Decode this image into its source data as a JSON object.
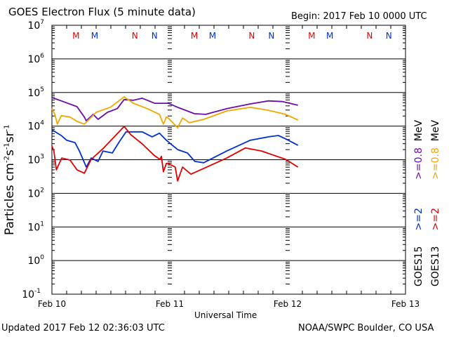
{
  "header": {
    "title": "GOES Electron Flux (5 minute data)",
    "begin": "Begin: 2017 Feb 10 0000 UTC"
  },
  "footer": {
    "updated": "Updated 2017 Feb 12 02:36:03 UTC",
    "credit": "NOAA/SWPC Boulder, CO USA"
  },
  "chart_data": {
    "type": "line",
    "title": "GOES Electron Flux (5 minute data)",
    "xlabel": "Universal Time",
    "ylabel": "Particles cm-2s-1sr-1",
    "yscale": "log",
    "ylim_log10": [
      -1,
      7
    ],
    "xlim_hours": [
      0,
      72
    ],
    "x_ticks": [
      {
        "label": "Feb 10",
        "h": 0
      },
      {
        "label": "Feb 11",
        "h": 24
      },
      {
        "label": "Feb 12",
        "h": 48
      },
      {
        "label": "Feb 13",
        "h": 72
      }
    ],
    "y_ticks": [
      {
        "base": "10",
        "exp": "7"
      },
      {
        "base": "10",
        "exp": "6"
      },
      {
        "base": "10",
        "exp": "5"
      },
      {
        "base": "10",
        "exp": "4"
      },
      {
        "base": "10",
        "exp": "3"
      },
      {
        "base": "10",
        "exp": "2"
      },
      {
        "base": "10",
        "exp": "1"
      },
      {
        "base": "10",
        "exp": "0"
      },
      {
        "base": "10",
        "exp": "-1"
      }
    ],
    "threshold_log10": 3,
    "markers": [
      {
        "label": "M",
        "h": 4.9,
        "color": "#e00000"
      },
      {
        "label": "M",
        "h": 8.7,
        "color": "#0030d0"
      },
      {
        "label": "N",
        "h": 16.9,
        "color": "#e00000"
      },
      {
        "label": "N",
        "h": 20.9,
        "color": "#0030d0"
      },
      {
        "label": "M",
        "h": 29,
        "color": "#e00000"
      },
      {
        "label": "M",
        "h": 32.7,
        "color": "#0030d0"
      },
      {
        "label": "N",
        "h": 40.7,
        "color": "#e00000"
      },
      {
        "label": "N",
        "h": 44.7,
        "color": "#0030d0"
      },
      {
        "label": "M",
        "h": 52.9,
        "color": "#e00000"
      },
      {
        "label": "M",
        "h": 56.6,
        "color": "#0030d0"
      },
      {
        "label": "N",
        "h": 64.7,
        "color": "#e00000"
      },
      {
        "label": "N",
        "h": 68.6,
        "color": "#0030d0"
      }
    ],
    "series": [
      {
        "name": "GOES15 >=0.8 MeV",
        "color": "#6a0dad",
        "points": [
          [
            0,
            4.85
          ],
          [
            2.3,
            4.73
          ],
          [
            5.1,
            4.58
          ],
          [
            6.6,
            4.27
          ],
          [
            7,
            4.16
          ],
          [
            8.4,
            4.35
          ],
          [
            9.4,
            4.2
          ],
          [
            11.3,
            4.41
          ],
          [
            13.3,
            4.52
          ],
          [
            14.7,
            4.79
          ],
          [
            16.6,
            4.77
          ],
          [
            18.4,
            4.83
          ],
          [
            20.9,
            4.68
          ],
          [
            23.7,
            4.68
          ],
          [
            25.6,
            4.56
          ],
          [
            29,
            4.37
          ],
          [
            31.3,
            4.35
          ],
          [
            35.6,
            4.52
          ],
          [
            40.4,
            4.66
          ],
          [
            44.1,
            4.75
          ],
          [
            47,
            4.73
          ],
          [
            50.1,
            4.62
          ]
        ]
      },
      {
        "name": "GOES13 >=0.8 MeV",
        "color": "#f0a800",
        "points": [
          [
            0,
            4.52
          ],
          [
            0.6,
            4.35
          ],
          [
            1.1,
            4.06
          ],
          [
            1.9,
            4.31
          ],
          [
            3.7,
            4.27
          ],
          [
            5.1,
            4.14
          ],
          [
            6.6,
            4.06
          ],
          [
            9,
            4.41
          ],
          [
            11.9,
            4.56
          ],
          [
            14.7,
            4.87
          ],
          [
            16.6,
            4.68
          ],
          [
            19.4,
            4.52
          ],
          [
            21.9,
            4.35
          ],
          [
            22.7,
            4.06
          ],
          [
            23.3,
            4.27
          ],
          [
            23.7,
            4.24
          ],
          [
            25.6,
            3.95
          ],
          [
            26.6,
            4.24
          ],
          [
            28,
            4.1
          ],
          [
            30.9,
            4.2
          ],
          [
            35.6,
            4.45
          ],
          [
            40.4,
            4.56
          ],
          [
            44.1,
            4.47
          ],
          [
            47.6,
            4.35
          ],
          [
            50.1,
            4.18
          ]
        ]
      },
      {
        "name": "GOES15 >=2 MeV",
        "color": "#0030d0",
        "points": [
          [
            0,
            3.89
          ],
          [
            1.9,
            3.72
          ],
          [
            3,
            3.58
          ],
          [
            4.7,
            3.51
          ],
          [
            5.6,
            3.26
          ],
          [
            7,
            2.78
          ],
          [
            8,
            3.05
          ],
          [
            9.4,
            2.95
          ],
          [
            10.4,
            3.26
          ],
          [
            12.3,
            3.2
          ],
          [
            13.7,
            3.53
          ],
          [
            15.1,
            3.83
          ],
          [
            18.4,
            3.83
          ],
          [
            20.4,
            3.68
          ],
          [
            21.9,
            3.79
          ],
          [
            23.3,
            3.58
          ],
          [
            23.7,
            3.53
          ],
          [
            25.6,
            3.3
          ],
          [
            27.6,
            3.2
          ],
          [
            29.1,
            2.95
          ],
          [
            30.9,
            2.91
          ],
          [
            35.6,
            3.26
          ],
          [
            40.4,
            3.58
          ],
          [
            44.1,
            3.68
          ],
          [
            46.1,
            3.72
          ],
          [
            47.6,
            3.62
          ],
          [
            50.1,
            3.43
          ]
        ]
      },
      {
        "name": "GOES13 >=2 MeV",
        "color": "#e00000",
        "points": [
          [
            0,
            3.41
          ],
          [
            0.4,
            3.26
          ],
          [
            0.9,
            2.7
          ],
          [
            2,
            3.05
          ],
          [
            3.7,
            2.99
          ],
          [
            5.1,
            2.7
          ],
          [
            6.6,
            2.6
          ],
          [
            8,
            3.01
          ],
          [
            10.4,
            3.33
          ],
          [
            12.7,
            3.68
          ],
          [
            14.7,
            3.99
          ],
          [
            16.1,
            3.74
          ],
          [
            18.4,
            3.47
          ],
          [
            20.9,
            3.12
          ],
          [
            22,
            3.01
          ],
          [
            22.3,
            3.1
          ],
          [
            22.7,
            2.64
          ],
          [
            23.3,
            2.89
          ],
          [
            23.7,
            2.89
          ],
          [
            25.1,
            2.78
          ],
          [
            25.6,
            2.37
          ],
          [
            26.6,
            2.78
          ],
          [
            28.3,
            2.57
          ],
          [
            30.9,
            2.74
          ],
          [
            35.6,
            3.05
          ],
          [
            39.4,
            3.35
          ],
          [
            42.7,
            3.26
          ],
          [
            47.6,
            3.01
          ],
          [
            50.1,
            2.78
          ]
        ]
      }
    ],
    "legend": {
      "placement": "right",
      "col1": {
        "sat": "GOES15",
        "hi": ">=2",
        "lo": ">=0.8",
        "unit": "MeV"
      },
      "col2": {
        "sat": "GOES13",
        "hi": ">=2",
        "lo": ">=0.8",
        "unit": "MeV"
      }
    }
  }
}
